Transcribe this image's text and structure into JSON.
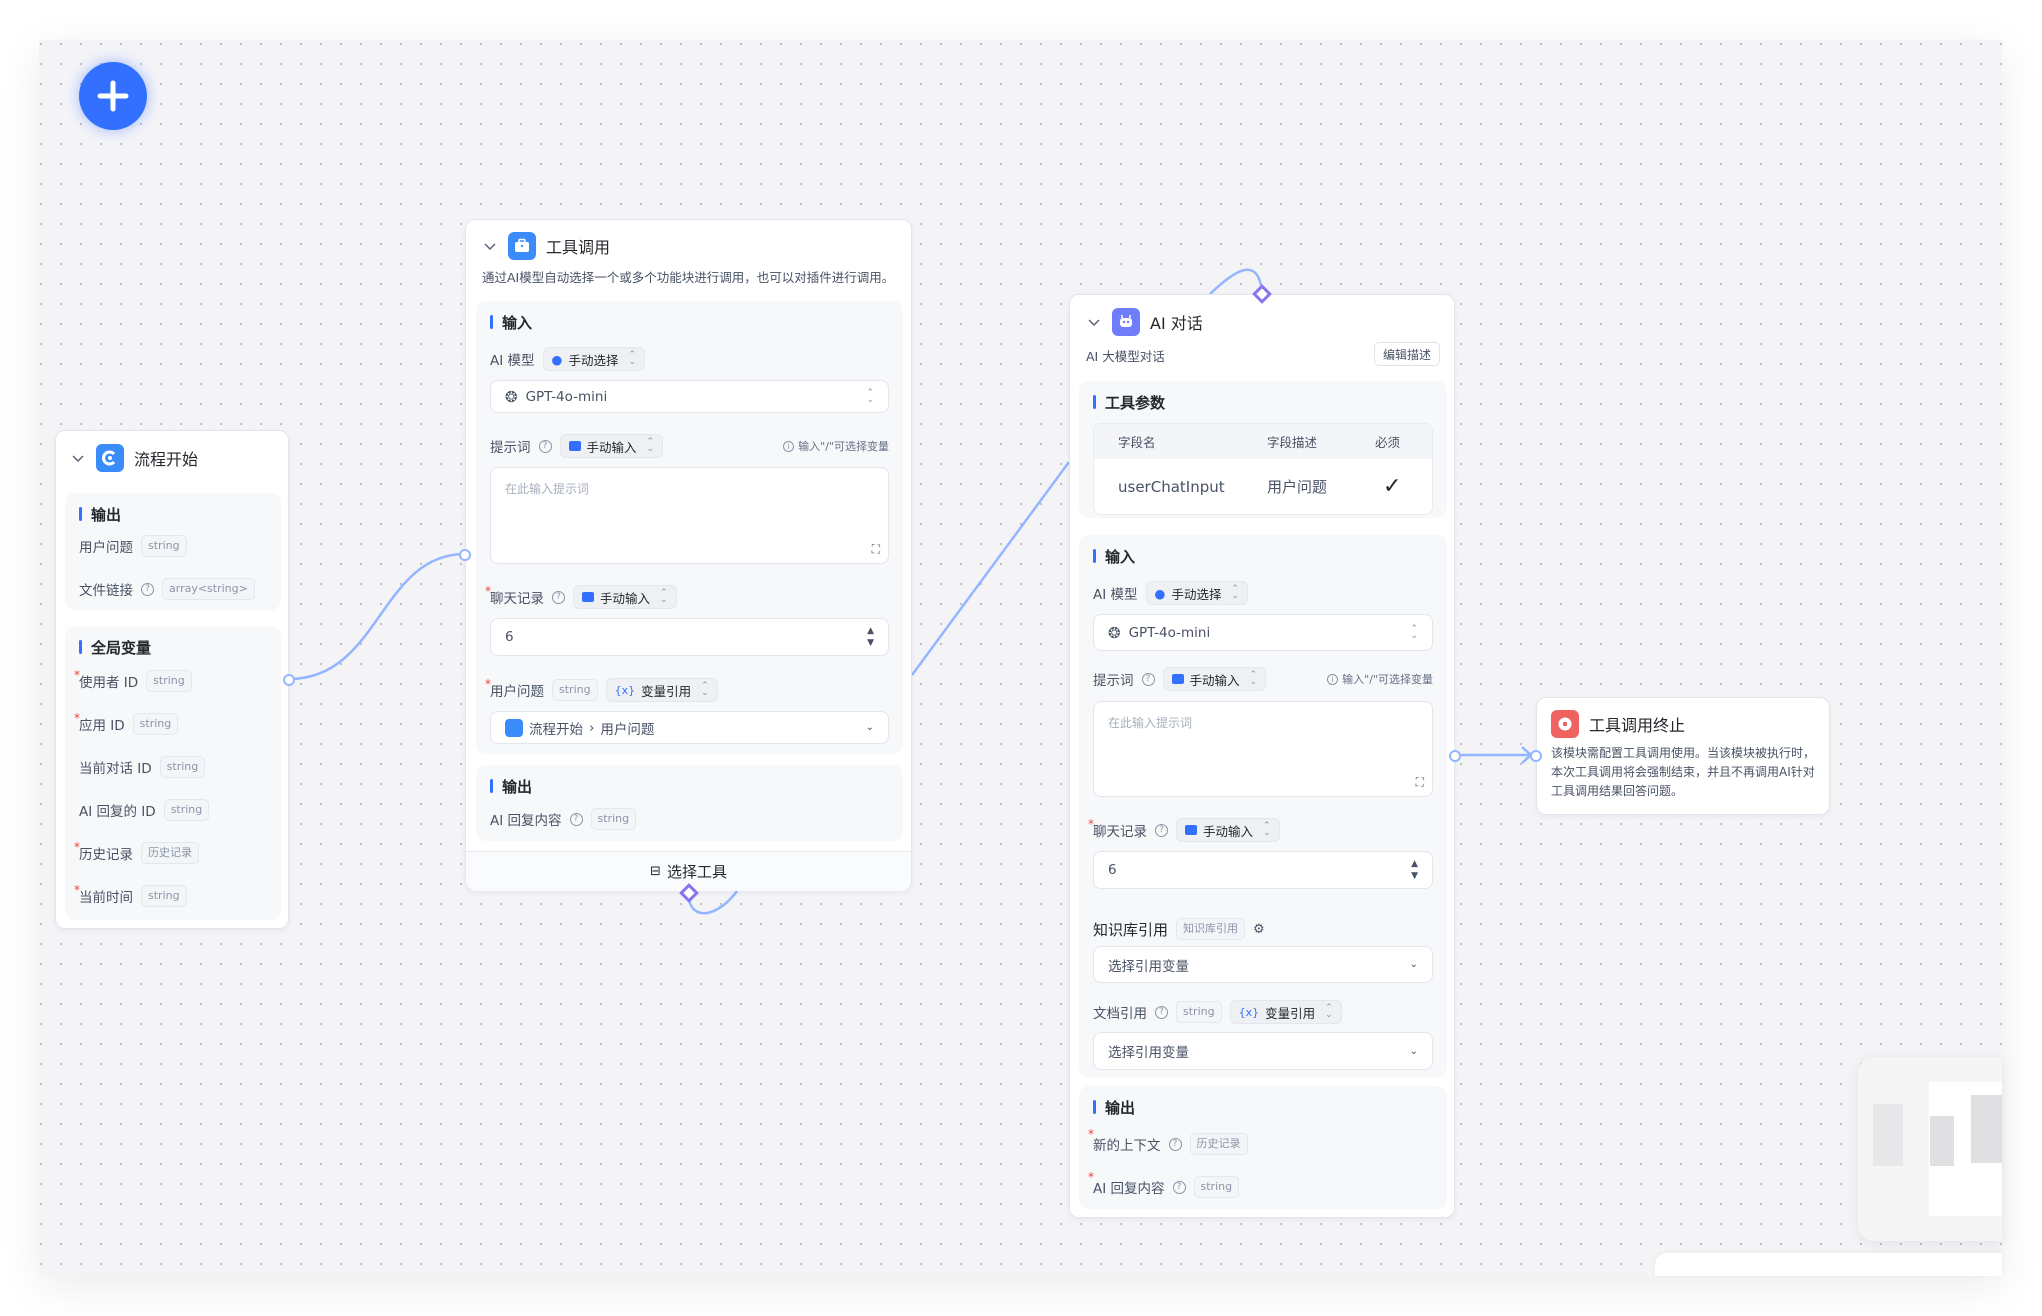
{
  "add_button": {
    "icon": "plus-icon",
    "color": "#3370ff"
  },
  "start_node": {
    "title": "流程开始",
    "output": {
      "title": "输出",
      "items": [
        {
          "label": "用户问题",
          "type": "string"
        },
        {
          "label": "文件链接",
          "type": "array<string>",
          "help": true
        }
      ]
    },
    "globals": {
      "title": "全局变量",
      "items": [
        {
          "label": "使用者 ID",
          "type": "string",
          "required": true
        },
        {
          "label": "应用 ID",
          "type": "string",
          "required": true
        },
        {
          "label": "当前对话 ID",
          "type": "string"
        },
        {
          "label": "AI 回复的 ID",
          "type": "string"
        },
        {
          "label": "历史记录",
          "type": "历史记录",
          "required": true
        },
        {
          "label": "当前时间",
          "type": "string",
          "required": true
        }
      ]
    }
  },
  "tool_node": {
    "title": "工具调用",
    "description": "通过AI模型自动选择一个或多个功能块进行调用，也可以对插件进行调用。",
    "input_title": "输入",
    "model_label": "AI 模型",
    "model_mode": "手动选择",
    "model_value": "GPT-4o-mini",
    "prompt_label": "提示词",
    "prompt_mode": "手动输入",
    "prompt_hint": "输入\"/\"可选择变量",
    "prompt_placeholder": "在此输入提示词",
    "history_label": "聊天记录",
    "history_mode": "手动输入",
    "history_value": "6",
    "question_label": "用户问题",
    "question_type": "string",
    "question_mode": "变量引用",
    "question_ref_node": "流程开始",
    "question_ref_field": "用户问题",
    "output_title": "输出",
    "output_label": "AI 回复内容",
    "output_type": "string",
    "footer_button": "选择工具"
  },
  "ai_node": {
    "title": "AI 对话",
    "description": "AI 大模型对话",
    "edit_desc_button": "编辑描述",
    "params_title": "工具参数",
    "params_headers": [
      "字段名",
      "字段描述",
      "必须"
    ],
    "params_rows": [
      {
        "name": "userChatInput",
        "desc": "用户问题",
        "required": "✓"
      }
    ],
    "input_title": "输入",
    "model_label": "AI 模型",
    "model_mode": "手动选择",
    "model_value": "GPT-4o-mini",
    "prompt_label": "提示词",
    "prompt_mode": "手动输入",
    "prompt_hint": "输入\"/\"可选择变量",
    "prompt_placeholder": "在此输入提示词",
    "history_label": "聊天记录",
    "history_mode": "手动输入",
    "history_value": "6",
    "kb_label": "知识库引用",
    "kb_type": "知识库引用",
    "kb_placeholder": "选择引用变量",
    "doc_label": "文档引用",
    "doc_type": "string",
    "doc_mode": "变量引用",
    "doc_placeholder": "选择引用变量",
    "output_title": "输出",
    "outputs": [
      {
        "label": "新的上下文",
        "type": "历史记录"
      },
      {
        "label": "AI 回复内容",
        "type": "string"
      }
    ]
  },
  "end_node": {
    "title": "工具调用终止",
    "description": "该模块需配置工具调用使用。当该模块被执行时，本次工具调用将会强制结束，并且不再调用AI针对工具调用结果回答问题。"
  },
  "colors": {
    "accent": "#3370ff",
    "edge": "#94b5ff",
    "tool_handle": "#8774ee",
    "end_icon": "#f0625f",
    "ai_icon": "#6f7dfa"
  }
}
